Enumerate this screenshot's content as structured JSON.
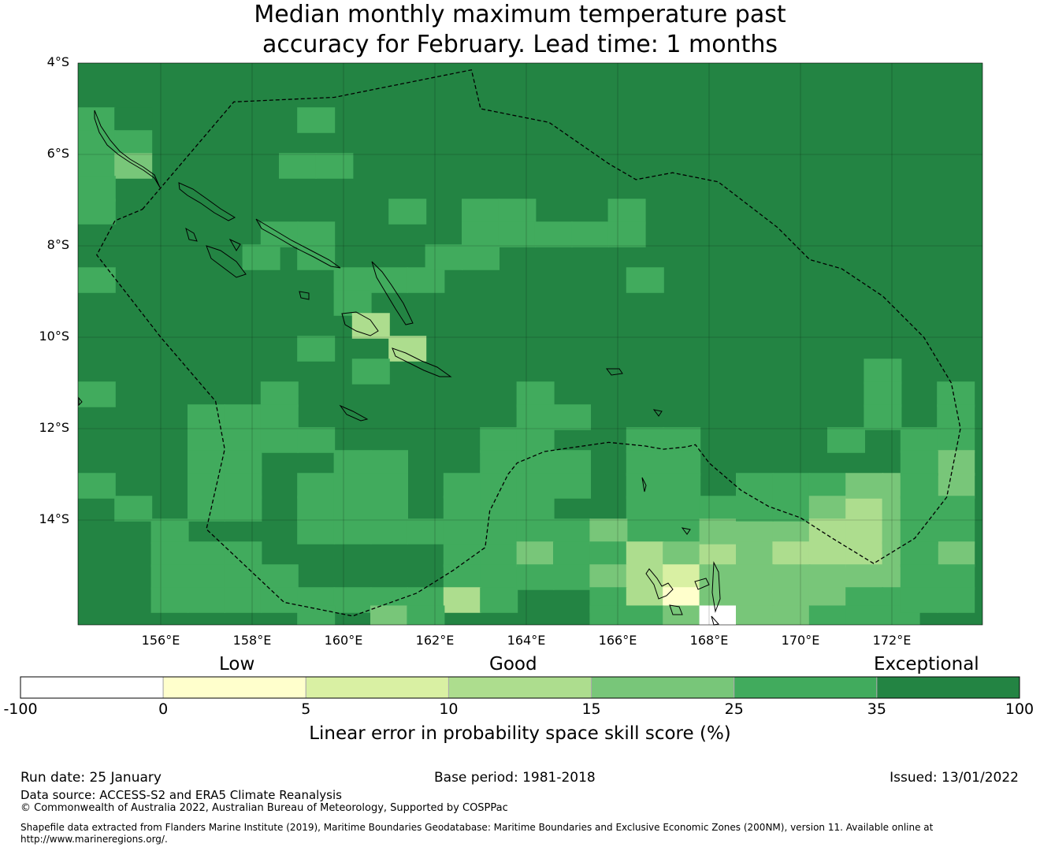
{
  "title": {
    "line1": "Median monthly maximum temperature past",
    "line2": "accuracy for February. Lead time: 1 months"
  },
  "map": {
    "lat_labels": [
      "4°S",
      "6°S",
      "8°S",
      "10°S",
      "12°S",
      "14°S"
    ],
    "lon_labels": [
      "156°E",
      "158°E",
      "160°E",
      "162°E",
      "164°E",
      "166°E",
      "168°E",
      "170°E",
      "172°E"
    ],
    "lon_range": [
      154.2,
      174.0
    ],
    "lat_range": [
      -4.0,
      -16.3
    ],
    "background_class": 6,
    "cells": [
      {
        "lon": 154.6,
        "lat": -5.25,
        "cls": 5
      },
      {
        "lon": 155.4,
        "lat": -5.25,
        "cls": 6
      },
      {
        "lon": 154.6,
        "lat": -5.75,
        "cls": 5
      },
      {
        "lon": 155.4,
        "lat": -5.75,
        "cls": 5
      },
      {
        "lon": 154.6,
        "lat": -6.25,
        "cls": 5
      },
      {
        "lon": 155.4,
        "lat": -6.25,
        "cls": 4
      },
      {
        "lon": 154.6,
        "lat": -6.75,
        "cls": 5
      },
      {
        "lon": 154.6,
        "lat": -7.25,
        "cls": 5
      },
      {
        "lon": 154.6,
        "lat": -8.75,
        "cls": 5
      },
      {
        "lon": 159.4,
        "lat": -5.25,
        "cls": 5
      },
      {
        "lon": 159.0,
        "lat": -6.25,
        "cls": 5
      },
      {
        "lon": 159.8,
        "lat": -6.25,
        "cls": 5
      },
      {
        "lon": 158.6,
        "lat": -7.75,
        "cls": 5
      },
      {
        "lon": 159.4,
        "lat": -7.75,
        "cls": 5
      },
      {
        "lon": 158.2,
        "lat": -8.25,
        "cls": 5
      },
      {
        "lon": 159.4,
        "lat": -8.25,
        "cls": 5
      },
      {
        "lon": 160.2,
        "lat": -8.75,
        "cls": 5
      },
      {
        "lon": 160.2,
        "lat": -9.25,
        "cls": 5
      },
      {
        "lon": 161.0,
        "lat": -8.75,
        "cls": 5
      },
      {
        "lon": 161.8,
        "lat": -8.75,
        "cls": 5
      },
      {
        "lon": 160.6,
        "lat": -9.75,
        "cls": 3
      },
      {
        "lon": 161.4,
        "lat": -10.25,
        "cls": 3
      },
      {
        "lon": 159.4,
        "lat": -10.25,
        "cls": 5
      },
      {
        "lon": 160.6,
        "lat": -10.75,
        "cls": 5
      },
      {
        "lon": 161.4,
        "lat": -7.25,
        "cls": 5
      },
      {
        "lon": 163.0,
        "lat": -7.25,
        "cls": 5
      },
      {
        "lon": 163.8,
        "lat": -7.25,
        "cls": 5
      },
      {
        "lon": 163.0,
        "lat": -7.75,
        "cls": 5
      },
      {
        "lon": 163.8,
        "lat": -7.75,
        "cls": 5
      },
      {
        "lon": 164.6,
        "lat": -7.75,
        "cls": 5
      },
      {
        "lon": 165.4,
        "lat": -7.75,
        "cls": 5
      },
      {
        "lon": 166.2,
        "lat": -7.25,
        "cls": 5
      },
      {
        "lon": 166.2,
        "lat": -7.75,
        "cls": 5
      },
      {
        "lon": 162.2,
        "lat": -8.25,
        "cls": 5
      },
      {
        "lon": 163.0,
        "lat": -8.25,
        "cls": 5
      },
      {
        "lon": 166.6,
        "lat": -8.75,
        "cls": 5
      },
      {
        "lon": 154.6,
        "lat": -11.25,
        "cls": 5
      },
      {
        "lon": 157.0,
        "lat": -11.75,
        "cls": 5
      },
      {
        "lon": 157.8,
        "lat": -11.75,
        "cls": 5
      },
      {
        "lon": 158.6,
        "lat": -11.25,
        "cls": 5
      },
      {
        "lon": 158.6,
        "lat": -11.75,
        "cls": 5
      },
      {
        "lon": 157.0,
        "lat": -12.25,
        "cls": 5
      },
      {
        "lon": 157.8,
        "lat": -12.25,
        "cls": 5
      },
      {
        "lon": 158.6,
        "lat": -12.25,
        "cls": 5
      },
      {
        "lon": 159.4,
        "lat": -12.25,
        "cls": 5
      },
      {
        "lon": 157.0,
        "lat": -12.75,
        "cls": 5
      },
      {
        "lon": 157.8,
        "lat": -12.75,
        "cls": 5
      },
      {
        "lon": 160.2,
        "lat": -12.75,
        "cls": 5
      },
      {
        "lon": 161.0,
        "lat": -12.75,
        "cls": 5
      },
      {
        "lon": 154.6,
        "lat": -13.25,
        "cls": 5
      },
      {
        "lon": 155.4,
        "lat": -13.75,
        "cls": 5
      },
      {
        "lon": 157.0,
        "lat": -13.25,
        "cls": 5
      },
      {
        "lon": 157.8,
        "lat": -13.25,
        "cls": 5
      },
      {
        "lon": 159.4,
        "lat": -13.25,
        "cls": 5
      },
      {
        "lon": 160.2,
        "lat": -13.25,
        "cls": 5
      },
      {
        "lon": 161.0,
        "lat": -13.25,
        "cls": 5
      },
      {
        "lon": 157.0,
        "lat": -13.75,
        "cls": 5
      },
      {
        "lon": 157.8,
        "lat": -13.75,
        "cls": 5
      },
      {
        "lon": 159.4,
        "lat": -13.75,
        "cls": 5
      },
      {
        "lon": 160.2,
        "lat": -13.75,
        "cls": 5
      },
      {
        "lon": 161.0,
        "lat": -13.75,
        "cls": 5
      },
      {
        "lon": 156.2,
        "lat": -14.25,
        "cls": 5
      },
      {
        "lon": 159.4,
        "lat": -14.25,
        "cls": 5
      },
      {
        "lon": 160.2,
        "lat": -14.25,
        "cls": 5
      },
      {
        "lon": 161.0,
        "lat": -14.25,
        "cls": 5
      },
      {
        "lon": 161.8,
        "lat": -14.25,
        "cls": 5
      },
      {
        "lon": 156.2,
        "lat": -14.75,
        "cls": 5
      },
      {
        "lon": 157.0,
        "lat": -14.75,
        "cls": 5
      },
      {
        "lon": 157.8,
        "lat": -14.75,
        "cls": 5
      },
      {
        "lon": 162.6,
        "lat": -14.75,
        "cls": 5
      },
      {
        "lon": 163.4,
        "lat": -14.75,
        "cls": 5
      },
      {
        "lon": 156.2,
        "lat": -15.25,
        "cls": 5
      },
      {
        "lon": 157.0,
        "lat": -15.25,
        "cls": 5
      },
      {
        "lon": 157.8,
        "lat": -15.25,
        "cls": 5
      },
      {
        "lon": 158.6,
        "lat": -15.25,
        "cls": 5
      },
      {
        "lon": 156.2,
        "lat": -15.75,
        "cls": 5
      },
      {
        "lon": 157.0,
        "lat": -15.75,
        "cls": 5
      },
      {
        "lon": 157.8,
        "lat": -15.75,
        "cls": 5
      },
      {
        "lon": 158.6,
        "lat": -15.75,
        "cls": 5
      },
      {
        "lon": 159.4,
        "lat": -15.75,
        "cls": 5
      },
      {
        "lon": 160.2,
        "lat": -15.75,
        "cls": 5
      },
      {
        "lon": 161.0,
        "lat": -15.75,
        "cls": 5
      },
      {
        "lon": 161.8,
        "lat": -15.75,
        "cls": 5
      },
      {
        "lon": 162.6,
        "lat": -15.25,
        "cls": 5
      },
      {
        "lon": 163.4,
        "lat": -15.25,
        "cls": 5
      },
      {
        "lon": 162.6,
        "lat": -15.75,
        "cls": 3
      },
      {
        "lon": 163.4,
        "lat": -15.75,
        "cls": 5
      },
      {
        "lon": 159.4,
        "lat": -16.15,
        "cls": 5
      },
      {
        "lon": 161.0,
        "lat": -16.15,
        "cls": 4
      },
      {
        "lon": 161.8,
        "lat": -16.15,
        "cls": 5
      },
      {
        "lon": 164.2,
        "lat": -11.25,
        "cls": 5
      },
      {
        "lon": 164.2,
        "lat": -11.75,
        "cls": 5
      },
      {
        "lon": 165.0,
        "lat": -11.75,
        "cls": 5
      },
      {
        "lon": 163.4,
        "lat": -12.25,
        "cls": 5
      },
      {
        "lon": 164.2,
        "lat": -12.25,
        "cls": 5
      },
      {
        "lon": 163.4,
        "lat": -12.75,
        "cls": 5
      },
      {
        "lon": 164.2,
        "lat": -12.75,
        "cls": 5
      },
      {
        "lon": 165.0,
        "lat": -12.75,
        "cls": 5
      },
      {
        "lon": 162.6,
        "lat": -13.25,
        "cls": 5
      },
      {
        "lon": 163.4,
        "lat": -13.25,
        "cls": 5
      },
      {
        "lon": 164.2,
        "lat": -13.25,
        "cls": 5
      },
      {
        "lon": 165.0,
        "lat": -13.25,
        "cls": 5
      },
      {
        "lon": 162.6,
        "lat": -13.75,
        "cls": 5
      },
      {
        "lon": 163.4,
        "lat": -13.75,
        "cls": 5
      },
      {
        "lon": 164.2,
        "lat": -13.75,
        "cls": 5
      },
      {
        "lon": 162.6,
        "lat": -14.25,
        "cls": 5
      },
      {
        "lon": 163.4,
        "lat": -14.25,
        "cls": 5
      },
      {
        "lon": 164.2,
        "lat": -14.25,
        "cls": 5
      },
      {
        "lon": 165.0,
        "lat": -14.25,
        "cls": 5
      },
      {
        "lon": 164.2,
        "lat": -14.75,
        "cls": 4
      },
      {
        "lon": 165.0,
        "lat": -14.75,
        "cls": 5
      },
      {
        "lon": 164.2,
        "lat": -15.25,
        "cls": 5
      },
      {
        "lon": 165.0,
        "lat": -15.25,
        "cls": 5
      },
      {
        "lon": 166.6,
        "lat": -12.25,
        "cls": 5
      },
      {
        "lon": 167.4,
        "lat": -12.25,
        "cls": 5
      },
      {
        "lon": 166.6,
        "lat": -12.75,
        "cls": 5
      },
      {
        "lon": 167.4,
        "lat": -12.75,
        "cls": 5
      },
      {
        "lon": 166.6,
        "lat": -13.25,
        "cls": 5
      },
      {
        "lon": 167.4,
        "lat": -13.25,
        "cls": 5
      },
      {
        "lon": 166.6,
        "lat": -13.75,
        "cls": 5
      },
      {
        "lon": 167.4,
        "lat": -13.75,
        "cls": 5
      },
      {
        "lon": 168.2,
        "lat": -13.75,
        "cls": 5
      },
      {
        "lon": 166.6,
        "lat": -14.25,
        "cls": 5
      },
      {
        "lon": 167.4,
        "lat": -14.25,
        "cls": 5
      },
      {
        "lon": 165.8,
        "lat": -14.25,
        "cls": 4
      },
      {
        "lon": 165.8,
        "lat": -14.75,
        "cls": 5
      },
      {
        "lon": 166.6,
        "lat": -14.75,
        "cls": 3
      },
      {
        "lon": 167.4,
        "lat": -14.75,
        "cls": 4
      },
      {
        "lon": 168.2,
        "lat": -14.75,
        "cls": 3
      },
      {
        "lon": 165.8,
        "lat": -15.25,
        "cls": 4
      },
      {
        "lon": 166.6,
        "lat": -15.25,
        "cls": 3
      },
      {
        "lon": 167.4,
        "lat": -15.25,
        "cls": 2
      },
      {
        "lon": 168.2,
        "lat": -15.25,
        "cls": 4
      },
      {
        "lon": 165.8,
        "lat": -15.75,
        "cls": 5
      },
      {
        "lon": 166.6,
        "lat": -15.75,
        "cls": 3
      },
      {
        "lon": 167.4,
        "lat": -15.75,
        "cls": 1
      },
      {
        "lon": 168.2,
        "lat": -15.75,
        "cls": 4
      },
      {
        "lon": 165.8,
        "lat": -16.15,
        "cls": 5
      },
      {
        "lon": 166.6,
        "lat": -16.15,
        "cls": 5
      },
      {
        "lon": 167.4,
        "lat": -16.15,
        "cls": 4
      },
      {
        "lon": 168.2,
        "lat": -16.15,
        "cls": 0
      },
      {
        "lon": 168.2,
        "lat": -14.25,
        "cls": 4
      },
      {
        "lon": 169.0,
        "lat": -14.25,
        "cls": 4
      },
      {
        "lon": 169.8,
        "lat": -14.25,
        "cls": 4
      },
      {
        "lon": 169.0,
        "lat": -14.75,
        "cls": 4
      },
      {
        "lon": 169.8,
        "lat": -14.75,
        "cls": 3
      },
      {
        "lon": 170.6,
        "lat": -14.75,
        "cls": 3
      },
      {
        "lon": 169.0,
        "lat": -15.25,
        "cls": 4
      },
      {
        "lon": 169.8,
        "lat": -15.25,
        "cls": 4
      },
      {
        "lon": 170.6,
        "lat": -15.25,
        "cls": 4
      },
      {
        "lon": 169.0,
        "lat": -15.75,
        "cls": 4
      },
      {
        "lon": 169.8,
        "lat": -15.75,
        "cls": 4
      },
      {
        "lon": 170.6,
        "lat": -15.75,
        "cls": 4
      },
      {
        "lon": 169.0,
        "lat": -16.15,
        "cls": 4
      },
      {
        "lon": 169.8,
        "lat": -16.15,
        "cls": 4
      },
      {
        "lon": 169.0,
        "lat": -13.25,
        "cls": 5
      },
      {
        "lon": 169.8,
        "lat": -13.25,
        "cls": 5
      },
      {
        "lon": 169.0,
        "lat": -13.75,
        "cls": 5
      },
      {
        "lon": 169.8,
        "lat": -13.75,
        "cls": 5
      },
      {
        "lon": 170.6,
        "lat": -13.25,
        "cls": 5
      },
      {
        "lon": 170.6,
        "lat": -13.75,
        "cls": 4
      },
      {
        "lon": 171.4,
        "lat": -13.75,
        "cls": 3
      },
      {
        "lon": 171.4,
        "lat": -13.25,
        "cls": 4
      },
      {
        "lon": 172.2,
        "lat": -13.25,
        "cls": 4
      },
      {
        "lon": 172.2,
        "lat": -13.75,
        "cls": 4
      },
      {
        "lon": 170.6,
        "lat": -14.25,
        "cls": 3
      },
      {
        "lon": 171.4,
        "lat": -14.25,
        "cls": 3
      },
      {
        "lon": 171.4,
        "lat": -14.75,
        "cls": 3
      },
      {
        "lon": 172.2,
        "lat": -14.25,
        "cls": 4
      },
      {
        "lon": 172.2,
        "lat": -14.75,
        "cls": 4
      },
      {
        "lon": 171.4,
        "lat": -15.25,
        "cls": 4
      },
      {
        "lon": 172.2,
        "lat": -15.25,
        "cls": 4
      },
      {
        "lon": 171.4,
        "lat": -15.75,
        "cls": 5
      },
      {
        "lon": 172.2,
        "lat": -15.75,
        "cls": 5
      },
      {
        "lon": 170.6,
        "lat": -16.15,
        "cls": 5
      },
      {
        "lon": 171.4,
        "lat": -16.15,
        "cls": 5
      },
      {
        "lon": 172.2,
        "lat": -16.15,
        "cls": 5
      },
      {
        "lon": 171.8,
        "lat": -10.75,
        "cls": 5
      },
      {
        "lon": 171.8,
        "lat": -11.25,
        "cls": 5
      },
      {
        "lon": 171.8,
        "lat": -11.75,
        "cls": 5
      },
      {
        "lon": 171.0,
        "lat": -12.25,
        "cls": 5
      },
      {
        "lon": 172.6,
        "lat": -12.25,
        "cls": 5
      },
      {
        "lon": 173.4,
        "lat": -11.25,
        "cls": 5
      },
      {
        "lon": 173.4,
        "lat": -11.75,
        "cls": 5
      },
      {
        "lon": 173.4,
        "lat": -12.25,
        "cls": 5
      },
      {
        "lon": 173.4,
        "lat": -12.75,
        "cls": 4
      },
      {
        "lon": 173.4,
        "lat": -13.25,
        "cls": 4
      },
      {
        "lon": 173.4,
        "lat": -13.75,
        "cls": 5
      },
      {
        "lon": 173.4,
        "lat": -14.25,
        "cls": 5
      },
      {
        "lon": 173.4,
        "lat": -14.75,
        "cls": 4
      },
      {
        "lon": 173.4,
        "lat": -15.25,
        "cls": 5
      },
      {
        "lon": 173.4,
        "lat": -15.75,
        "cls": 5
      },
      {
        "lon": 172.6,
        "lat": -12.75,
        "cls": 5
      },
      {
        "lon": 172.6,
        "lat": -13.25,
        "cls": 5
      },
      {
        "lon": 172.6,
        "lat": -13.75,
        "cls": 5
      },
      {
        "lon": 172.6,
        "lat": -14.25,
        "cls": 5
      },
      {
        "lon": 172.6,
        "lat": -14.75,
        "cls": 5
      },
      {
        "lon": 172.6,
        "lat": -15.25,
        "cls": 5
      },
      {
        "lon": 172.6,
        "lat": -15.75,
        "cls": 5
      }
    ],
    "eez_boundary": [
      [
        155.6,
        -7.2
      ],
      [
        157.6,
        -4.85
      ],
      [
        159.8,
        -4.75
      ],
      [
        162.8,
        -4.15
      ],
      [
        163.0,
        -5.0
      ],
      [
        164.5,
        -5.3
      ],
      [
        165.8,
        -6.2
      ],
      [
        166.4,
        -6.55
      ],
      [
        167.2,
        -6.4
      ],
      [
        168.2,
        -6.6
      ],
      [
        169.5,
        -7.6
      ],
      [
        170.2,
        -8.3
      ],
      [
        170.9,
        -8.5
      ],
      [
        171.8,
        -9.1
      ],
      [
        172.7,
        -10.0
      ],
      [
        173.3,
        -11.0
      ],
      [
        173.5,
        -12.0
      ],
      [
        173.2,
        -13.5
      ],
      [
        172.5,
        -14.4
      ],
      [
        171.6,
        -14.95
      ],
      [
        170.7,
        -14.4
      ],
      [
        170.0,
        -13.95
      ],
      [
        169.3,
        -13.7
      ],
      [
        168.7,
        -13.35
      ],
      [
        168.0,
        -12.75
      ],
      [
        167.7,
        -12.35
      ],
      [
        167.5,
        -12.4
      ],
      [
        167.0,
        -12.45
      ],
      [
        166.6,
        -12.38
      ],
      [
        165.8,
        -12.3
      ],
      [
        164.4,
        -12.5
      ],
      [
        163.8,
        -12.75
      ],
      [
        163.6,
        -13.0
      ],
      [
        163.2,
        -13.8
      ],
      [
        163.1,
        -14.6
      ],
      [
        162.4,
        -15.1
      ],
      [
        161.6,
        -15.6
      ],
      [
        160.2,
        -16.1
      ],
      [
        158.7,
        -15.8
      ],
      [
        157.0,
        -14.2
      ],
      [
        157.4,
        -12.45
      ],
      [
        157.2,
        -11.4
      ],
      [
        156.0,
        -10.0
      ],
      [
        154.6,
        -8.2
      ],
      [
        155.0,
        -7.45
      ],
      [
        155.6,
        -7.2
      ]
    ]
  },
  "legend": {
    "categories": [
      "Low",
      "Good",
      "Exceptional"
    ],
    "ticks": [
      "-100",
      "0",
      "5",
      "10",
      "15",
      "25",
      "35",
      "100"
    ],
    "colors": [
      "#ffffff",
      "#ffffcc",
      "#d9f0a3",
      "#addd8e",
      "#78c679",
      "#41ab5d",
      "#238443"
    ],
    "axis_title": "Linear error in probability space skill score (%)"
  },
  "footer": {
    "run_date": "Run date: 25 January",
    "base_period": "Base period: 1981-2018",
    "issued": "Issued: 13/01/2022",
    "data_source": "Data source: ACCESS-S2 and ERA5 Climate Reanalysis",
    "copyright": "© Commonwealth of Australia 2022, Australian Bureau of Meteorology, Supported by COSPPac",
    "shapefile_line1": "Shapefile data extracted from Flanders Marine Institute (2019), Maritime Boundaries Geodatabase: Maritime Boundaries and Exclusive Economic Zones (200NM), version 11. Available online at",
    "shapefile_line2": "http://www.marineregions.org/."
  }
}
